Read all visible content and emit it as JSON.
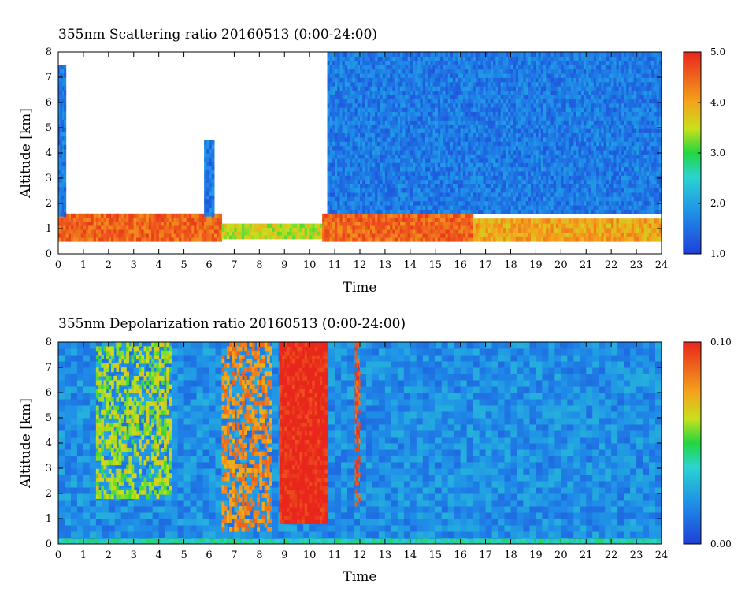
{
  "chart_data": [
    {
      "type": "heatmap",
      "title": "355nm Scattering ratio  20160513 (0:00-24:00)",
      "xlabel": "Time",
      "ylabel": "Altitude [km]",
      "xlim": [
        0,
        24
      ],
      "ylim": [
        0,
        8
      ],
      "x_ticks": [
        "0",
        "1",
        "2",
        "3",
        "4",
        "5",
        "6",
        "7",
        "8",
        "9",
        "10",
        "11",
        "12",
        "13",
        "14",
        "15",
        "16",
        "17",
        "18",
        "19",
        "20",
        "21",
        "22",
        "23",
        "24"
      ],
      "y_ticks": [
        "0",
        "1",
        "2",
        "3",
        "4",
        "5",
        "6",
        "7",
        "8"
      ],
      "colorbar": {
        "min": 1.0,
        "max": 5.0,
        "ticks": [
          "1.0",
          "2.0",
          "3.0",
          "4.0",
          "5.0"
        ]
      },
      "background_color": "#ffffff",
      "features": [
        {
          "kind": "boundary_layer",
          "x": [
            0,
            6.5
          ],
          "alt": [
            0.5,
            1.6
          ],
          "value": 4.5
        },
        {
          "kind": "cloud_column",
          "x": [
            0,
            0.3
          ],
          "alt": [
            1.5,
            7.5
          ],
          "value": 1.6
        },
        {
          "kind": "cloud_plume",
          "x": [
            5.8,
            6.2
          ],
          "alt": [
            1.5,
            4.5
          ],
          "value": 1.6
        },
        {
          "kind": "low_layer",
          "x": [
            6.5,
            10.5
          ],
          "alt": [
            0.6,
            1.2
          ],
          "value": 3.5
        },
        {
          "kind": "boundary_layer",
          "x": [
            10.5,
            16.5
          ],
          "alt": [
            0.5,
            1.6
          ],
          "value": 4.5
        },
        {
          "kind": "cloud_column",
          "x": [
            10.7,
            24
          ],
          "alt": [
            1.6,
            8
          ],
          "value": 1.6
        },
        {
          "kind": "boundary_layer",
          "x": [
            16.5,
            24
          ],
          "alt": [
            0.5,
            1.4
          ],
          "value": 4.0
        }
      ]
    },
    {
      "type": "heatmap",
      "title": "355nm Depolarization ratio  20160513 (0:00-24:00)",
      "xlabel": "Time",
      "ylabel": "Altitude [km]",
      "xlim": [
        0,
        24
      ],
      "ylim": [
        0,
        8
      ],
      "x_ticks": [
        "0",
        "1",
        "2",
        "3",
        "4",
        "5",
        "6",
        "7",
        "8",
        "9",
        "10",
        "11",
        "12",
        "13",
        "14",
        "15",
        "16",
        "17",
        "18",
        "19",
        "20",
        "21",
        "22",
        "23",
        "24"
      ],
      "y_ticks": [
        "0",
        "1",
        "2",
        "3",
        "4",
        "5",
        "6",
        "7",
        "8"
      ],
      "colorbar": {
        "min": 0.0,
        "max": 0.1,
        "ticks": [
          "0.00",
          "0.10"
        ]
      },
      "background_value": 0.02,
      "features": [
        {
          "kind": "high_depol_streaks",
          "x": [
            1.5,
            4.5
          ],
          "alt": [
            1.8,
            8
          ],
          "value": 0.06
        },
        {
          "kind": "high_depol_streaks",
          "x": [
            6.5,
            8.5
          ],
          "alt": [
            0.5,
            8
          ],
          "value": 0.08
        },
        {
          "kind": "high_depol_block",
          "x": [
            8.8,
            10.7
          ],
          "alt": [
            0.8,
            8
          ],
          "value": 0.1
        },
        {
          "kind": "high_depol_streak",
          "x": [
            11.8,
            12.0
          ],
          "alt": [
            1.5,
            8
          ],
          "value": 0.09
        },
        {
          "kind": "ground_layer",
          "x": [
            0,
            24
          ],
          "alt": [
            0,
            0.2
          ],
          "value": 0.04
        }
      ]
    }
  ]
}
